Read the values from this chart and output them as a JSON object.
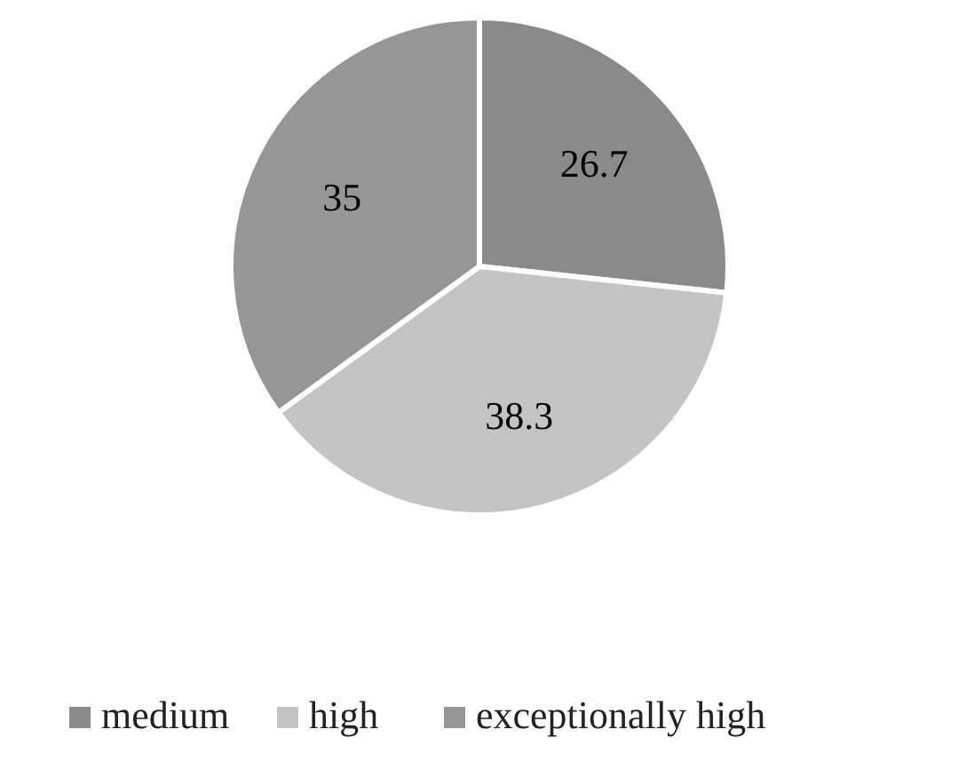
{
  "chart_data": {
    "type": "pie",
    "categories": [
      "medium",
      "high",
      "exceptionally high"
    ],
    "values": [
      26.7,
      38.3,
      35
    ],
    "colors": [
      "#8a8a8a",
      "#c4c4c4",
      "#969696"
    ],
    "data_labels": true,
    "legend": "bottom"
  }
}
